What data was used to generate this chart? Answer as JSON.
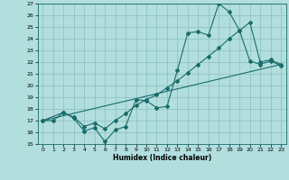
{
  "title": "",
  "xlabel": "Humidex (Indice chaleur)",
  "bg_color": "#b2dede",
  "grid_color": "#8abfbf",
  "line_color": "#1a6b6b",
  "ylim": [
    15,
    27
  ],
  "xlim": [
    -0.5,
    23.5
  ],
  "yticks": [
    15,
    16,
    17,
    18,
    19,
    20,
    21,
    22,
    23,
    24,
    25,
    26,
    27
  ],
  "xticks": [
    0,
    1,
    2,
    3,
    4,
    5,
    6,
    7,
    8,
    9,
    10,
    11,
    12,
    13,
    14,
    15,
    16,
    17,
    18,
    19,
    20,
    21,
    22,
    23
  ],
  "line1_x": [
    0,
    1,
    2,
    3,
    4,
    5,
    6,
    7,
    8,
    9,
    10,
    11,
    12,
    13,
    14,
    15,
    16,
    17,
    18,
    19,
    20,
    21,
    22,
    23
  ],
  "line1_y": [
    17.0,
    17.0,
    17.7,
    17.2,
    16.1,
    16.4,
    15.2,
    16.2,
    16.5,
    18.8,
    18.7,
    18.1,
    18.2,
    21.3,
    24.5,
    24.6,
    24.3,
    27.0,
    26.3,
    24.7,
    22.1,
    21.8,
    22.1,
    21.7
  ],
  "line2_x": [
    0,
    2,
    3,
    4,
    5,
    6,
    7,
    8,
    9,
    10,
    11,
    12,
    13,
    14,
    15,
    16,
    17,
    18,
    19,
    20,
    21,
    22,
    23
  ],
  "line2_y": [
    17.0,
    17.7,
    17.3,
    16.5,
    16.8,
    16.3,
    17.0,
    17.6,
    18.3,
    18.8,
    19.2,
    19.8,
    20.4,
    21.1,
    21.8,
    22.5,
    23.2,
    24.0,
    24.7,
    25.4,
    22.0,
    22.2,
    21.8
  ],
  "trend_x": [
    0,
    23
  ],
  "trend_y": [
    17.0,
    21.8
  ]
}
